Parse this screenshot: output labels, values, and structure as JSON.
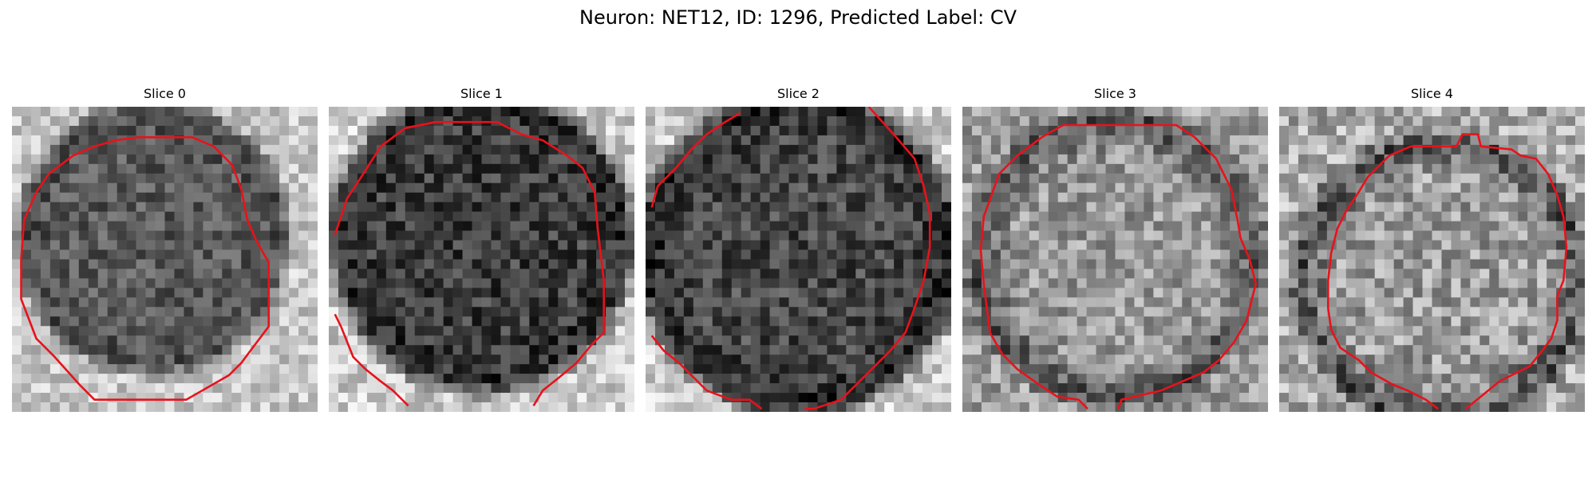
{
  "figure": {
    "title": "Neuron: NET12, ID: 1296, Predicted Label: CV"
  },
  "colors": {
    "contour": "#e8121b"
  },
  "panels": [
    {
      "title": "Slice 0",
      "seed": 11,
      "center": [
        0.46,
        0.43
      ],
      "radius": 0.42,
      "rim": 0.3,
      "inner": 0.35,
      "outer": 0.78,
      "contrast": 0.16,
      "contour": [
        [
          0.41,
          0.1
        ],
        [
          0.59,
          0.1
        ],
        [
          0.66,
          0.13
        ],
        [
          0.72,
          0.19
        ],
        [
          0.75,
          0.27
        ],
        [
          0.77,
          0.37
        ],
        [
          0.8,
          0.44
        ],
        [
          0.84,
          0.51
        ],
        [
          0.84,
          0.72
        ],
        [
          0.78,
          0.8
        ],
        [
          0.75,
          0.84
        ],
        [
          0.71,
          0.88
        ],
        [
          0.64,
          0.92
        ],
        [
          0.57,
          0.96
        ],
        [
          0.27,
          0.96
        ],
        [
          0.22,
          0.91
        ],
        [
          0.14,
          0.82
        ],
        [
          0.08,
          0.76
        ],
        [
          0.03,
          0.63
        ],
        [
          0.03,
          0.5
        ],
        [
          0.04,
          0.37
        ],
        [
          0.08,
          0.28
        ],
        [
          0.12,
          0.22
        ],
        [
          0.2,
          0.16
        ],
        [
          0.27,
          0.13
        ],
        [
          0.34,
          0.11
        ],
        [
          0.41,
          0.1
        ]
      ]
    },
    {
      "title": "Slice 1",
      "seed": 23,
      "center": [
        0.5,
        0.44
      ],
      "radius": 0.47,
      "rim": 0.18,
      "inner": 0.24,
      "outer": 0.8,
      "contrast": 0.18,
      "contour": [
        [
          0.02,
          0.42
        ],
        [
          0.06,
          0.3
        ],
        [
          0.1,
          0.24
        ],
        [
          0.17,
          0.13
        ],
        [
          0.25,
          0.07
        ],
        [
          0.35,
          0.05
        ],
        [
          0.55,
          0.05
        ],
        [
          0.63,
          0.09
        ],
        [
          0.7,
          0.11
        ],
        [
          0.78,
          0.16
        ],
        [
          0.83,
          0.2
        ],
        [
          0.87,
          0.28
        ],
        [
          0.88,
          0.4
        ],
        [
          0.9,
          0.57
        ],
        [
          0.9,
          0.74
        ],
        [
          0.86,
          0.78
        ],
        [
          0.81,
          0.84
        ],
        [
          0.75,
          0.89
        ],
        [
          0.7,
          0.93
        ],
        [
          0.67,
          0.98
        ]
      ],
      "contour2": [
        [
          0.02,
          0.68
        ],
        [
          0.04,
          0.72
        ],
        [
          0.08,
          0.82
        ],
        [
          0.12,
          0.86
        ],
        [
          0.17,
          0.9
        ],
        [
          0.21,
          0.93
        ],
        [
          0.26,
          0.98
        ]
      ]
    },
    {
      "title": "Slice 2",
      "seed": 37,
      "center": [
        0.5,
        0.48
      ],
      "radius": 0.5,
      "rim": 0.14,
      "inner": 0.28,
      "outer": 0.8,
      "contrast": 0.18,
      "contour": [
        [
          0.02,
          0.33
        ],
        [
          0.04,
          0.26
        ],
        [
          0.1,
          0.2
        ],
        [
          0.15,
          0.14
        ],
        [
          0.2,
          0.09
        ],
        [
          0.26,
          0.05
        ],
        [
          0.31,
          0.02
        ]
      ],
      "contour2": [
        [
          0.73,
          0.0
        ],
        [
          0.82,
          0.1
        ],
        [
          0.88,
          0.17
        ],
        [
          0.91,
          0.26
        ],
        [
          0.93,
          0.35
        ],
        [
          0.93,
          0.46
        ],
        [
          0.91,
          0.57
        ],
        [
          0.88,
          0.66
        ],
        [
          0.85,
          0.74
        ],
        [
          0.8,
          0.8
        ],
        [
          0.76,
          0.84
        ],
        [
          0.7,
          0.9
        ],
        [
          0.64,
          0.96
        ],
        [
          0.55,
          0.99
        ],
        [
          0.52,
          0.99
        ]
      ],
      "contour3": [
        [
          0.02,
          0.75
        ],
        [
          0.06,
          0.8
        ],
        [
          0.11,
          0.84
        ],
        [
          0.16,
          0.89
        ],
        [
          0.2,
          0.93
        ],
        [
          0.28,
          0.96
        ],
        [
          0.34,
          0.96
        ],
        [
          0.38,
          0.99
        ]
      ]
    },
    {
      "title": "Slice 3",
      "seed": 51,
      "center": [
        0.5,
        0.5
      ],
      "radius": 0.46,
      "rim": 0.3,
      "inner": 0.6,
      "outer": 0.62,
      "contrast": 0.2,
      "contour": [
        [
          0.33,
          0.06
        ],
        [
          0.7,
          0.06
        ],
        [
          0.76,
          0.1
        ],
        [
          0.83,
          0.17
        ],
        [
          0.88,
          0.27
        ],
        [
          0.9,
          0.37
        ],
        [
          0.91,
          0.43
        ],
        [
          0.94,
          0.5
        ],
        [
          0.96,
          0.58
        ],
        [
          0.93,
          0.7
        ],
        [
          0.89,
          0.77
        ],
        [
          0.84,
          0.83
        ],
        [
          0.79,
          0.87
        ],
        [
          0.72,
          0.9
        ],
        [
          0.65,
          0.93
        ],
        [
          0.52,
          0.96
        ],
        [
          0.51,
          0.99
        ]
      ],
      "contour2": [
        [
          0.41,
          0.99
        ],
        [
          0.38,
          0.96
        ],
        [
          0.31,
          0.95
        ],
        [
          0.25,
          0.91
        ],
        [
          0.18,
          0.86
        ],
        [
          0.13,
          0.81
        ],
        [
          0.09,
          0.74
        ],
        [
          0.07,
          0.58
        ],
        [
          0.06,
          0.47
        ],
        [
          0.07,
          0.36
        ],
        [
          0.12,
          0.22
        ],
        [
          0.18,
          0.16
        ],
        [
          0.26,
          0.1
        ],
        [
          0.33,
          0.06
        ]
      ]
    },
    {
      "title": "Slice 4",
      "seed": 67,
      "center": [
        0.53,
        0.57
      ],
      "radius": 0.46,
      "rim": 0.3,
      "inner": 0.62,
      "outer": 0.68,
      "contrast": 0.22,
      "contour": [
        [
          0.43,
          0.13
        ],
        [
          0.58,
          0.13
        ],
        [
          0.6,
          0.09
        ],
        [
          0.65,
          0.09
        ],
        [
          0.66,
          0.13
        ],
        [
          0.76,
          0.14
        ],
        [
          0.79,
          0.16
        ],
        [
          0.84,
          0.17
        ],
        [
          0.88,
          0.22
        ],
        [
          0.91,
          0.29
        ],
        [
          0.93,
          0.36
        ],
        [
          0.94,
          0.46
        ],
        [
          0.93,
          0.57
        ],
        [
          0.91,
          0.62
        ],
        [
          0.91,
          0.7
        ],
        [
          0.89,
          0.76
        ],
        [
          0.86,
          0.8
        ],
        [
          0.82,
          0.85
        ],
        [
          0.78,
          0.87
        ],
        [
          0.72,
          0.9
        ],
        [
          0.66,
          0.95
        ],
        [
          0.61,
          0.99
        ]
      ],
      "contour2": [
        [
          0.52,
          0.99
        ],
        [
          0.48,
          0.96
        ],
        [
          0.42,
          0.93
        ],
        [
          0.37,
          0.91
        ],
        [
          0.3,
          0.87
        ],
        [
          0.26,
          0.83
        ],
        [
          0.2,
          0.79
        ],
        [
          0.17,
          0.73
        ],
        [
          0.16,
          0.66
        ],
        [
          0.16,
          0.57
        ],
        [
          0.17,
          0.48
        ],
        [
          0.19,
          0.4
        ],
        [
          0.22,
          0.34
        ],
        [
          0.26,
          0.28
        ],
        [
          0.29,
          0.23
        ],
        [
          0.33,
          0.19
        ],
        [
          0.36,
          0.16
        ],
        [
          0.43,
          0.13
        ]
      ]
    }
  ]
}
